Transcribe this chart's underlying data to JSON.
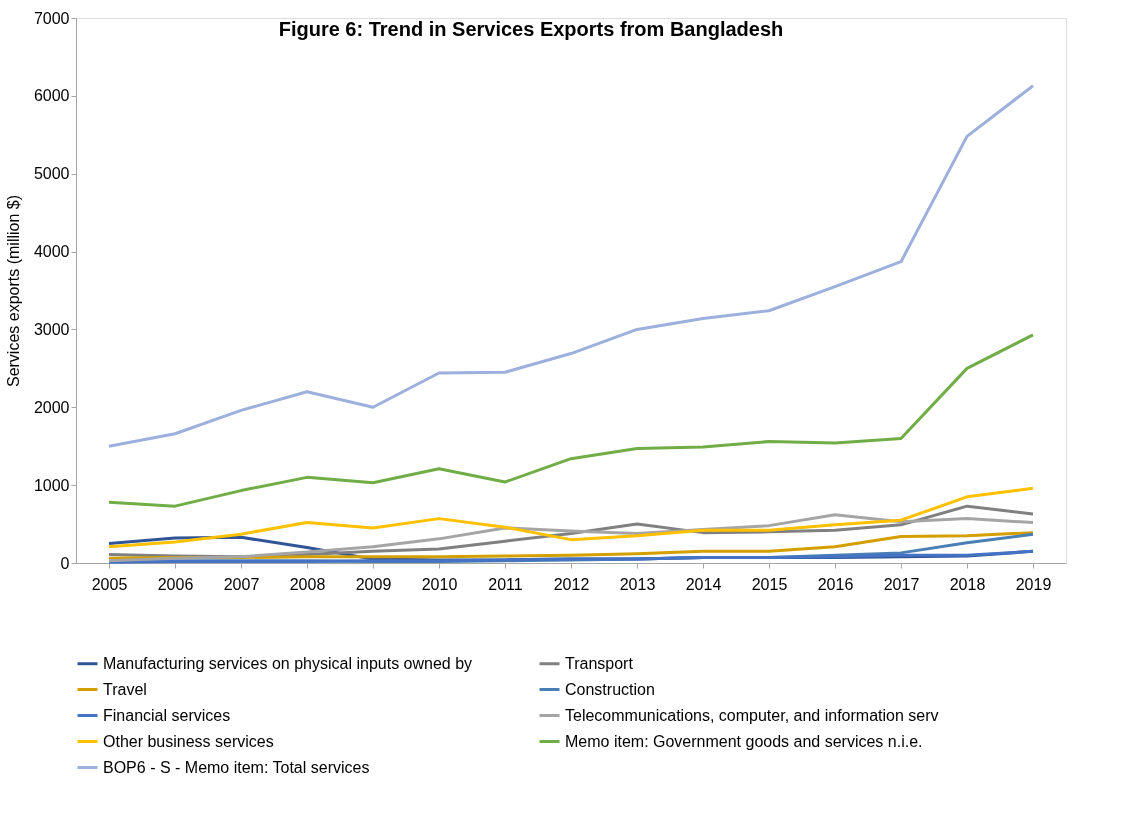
{
  "chart_data": {
    "type": "line",
    "title": "Figure 6: Trend  in Services Exports from Bangladesh",
    "ylabel": "Services exports (million $)",
    "categories": [
      "2005",
      "2006",
      "2007",
      "2008",
      "2009",
      "2010",
      "2011",
      "2012",
      "2013",
      "2014",
      "2015",
      "2016",
      "2017",
      "2018",
      "2019"
    ],
    "ylim": [
      0,
      7000
    ],
    "yticks": [
      0,
      1000,
      2000,
      3000,
      4000,
      5000,
      6000,
      7000
    ],
    "grid": false,
    "legend": "bottom",
    "marker": "none",
    "line_style": "solid",
    "series": [
      {
        "name": "Manufacturing services on physical inputs owned by",
        "color": "#2f5597",
        "values": [
          250,
          320,
          330,
          200,
          50,
          40,
          40,
          50,
          50,
          70,
          70,
          70,
          80,
          90,
          150
        ]
      },
      {
        "name": "Transport",
        "color": "#808080",
        "values": [
          110,
          90,
          80,
          110,
          150,
          180,
          280,
          380,
          500,
          390,
          400,
          420,
          490,
          730,
          630
        ]
      },
      {
        "name": "Travel",
        "color": "#d4a000",
        "values": [
          60,
          70,
          70,
          80,
          80,
          80,
          90,
          100,
          120,
          150,
          150,
          210,
          340,
          350,
          390
        ]
      },
      {
        "name": "Construction",
        "color": "#4a7fb5",
        "values": [
          20,
          30,
          30,
          30,
          20,
          20,
          30,
          40,
          50,
          70,
          70,
          100,
          130,
          260,
          370
        ]
      },
      {
        "name": "Financial services",
        "color": "#4472c4",
        "values": [
          10,
          20,
          20,
          20,
          30,
          30,
          40,
          50,
          50,
          70,
          70,
          80,
          100,
          100,
          150
        ]
      },
      {
        "name": "Telecommunications, computer, and information serv",
        "color": "#a5a5a5",
        "values": [
          30,
          60,
          80,
          140,
          210,
          310,
          450,
          410,
          380,
          430,
          480,
          620,
          530,
          570,
          520
        ]
      },
      {
        "name": "Other business services",
        "color": "#ffc000",
        "values": [
          210,
          270,
          370,
          520,
          450,
          570,
          460,
          300,
          350,
          420,
          420,
          490,
          550,
          850,
          960
        ]
      },
      {
        "name": "Memo item: Government goods and services n.i.e.",
        "color": "#70ad47",
        "values": [
          780,
          730,
          930,
          1100,
          1030,
          1210,
          1040,
          1340,
          1470,
          1490,
          1560,
          1540,
          1600,
          2500,
          2930
        ]
      },
      {
        "name": "BOP6 - S - Memo item: Total services",
        "color": "#9dafdd",
        "values": [
          1500,
          1660,
          1960,
          2200,
          2000,
          2440,
          2450,
          2690,
          3000,
          3140,
          3240,
          3550,
          3870,
          5480,
          6130
        ]
      }
    ]
  }
}
